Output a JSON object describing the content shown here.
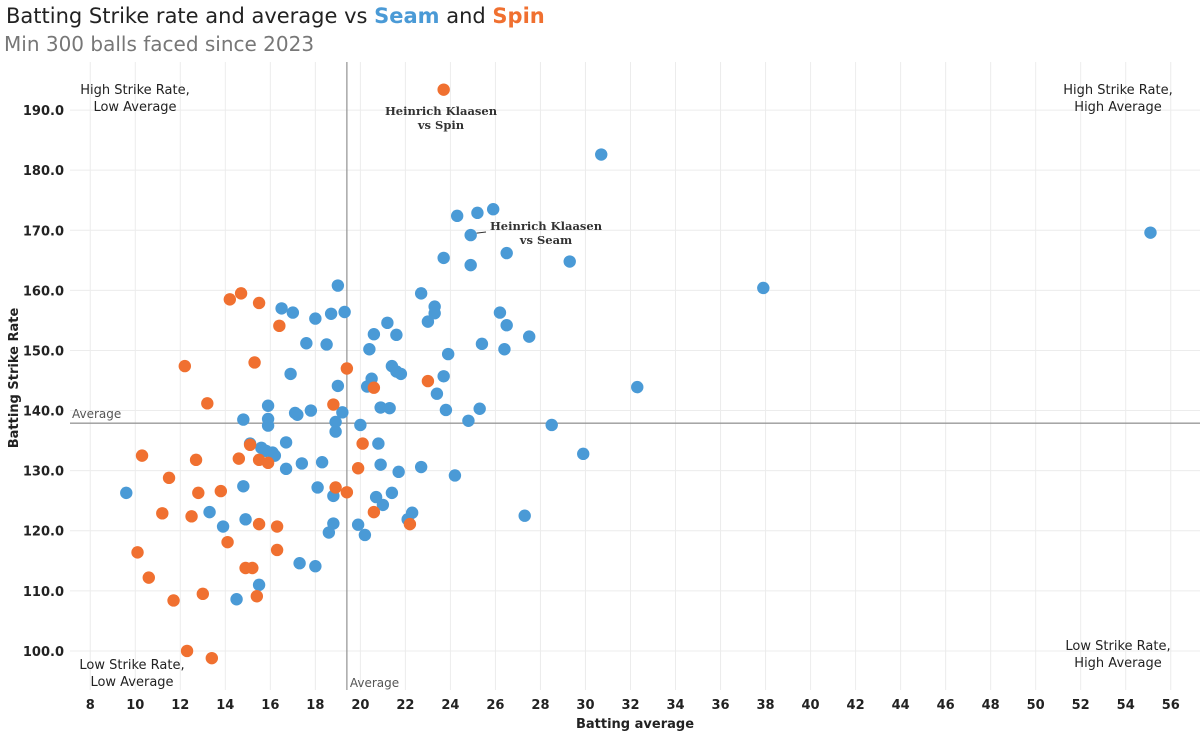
{
  "title": {
    "prefix": "Batting Strike rate and average vs ",
    "seam": "Seam",
    "middle": " and ",
    "spin": "Spin"
  },
  "subtitle": "Min 300 balls faced since 2023",
  "colors": {
    "seam": "#4a9ad6",
    "spin": "#f07030",
    "refline": "#999999",
    "grid": "#ececec"
  },
  "chart_data": {
    "type": "scatter",
    "xlabel": "Batting average",
    "ylabel": "Batting Strike Rate",
    "xlim": [
      7.1,
      57.3
    ],
    "ylim": [
      93.5,
      198
    ],
    "x_ticks": [
      8,
      10,
      12,
      14,
      16,
      18,
      20,
      22,
      24,
      26,
      28,
      30,
      32,
      34,
      36,
      38,
      40,
      42,
      44,
      46,
      48,
      50,
      52,
      54,
      56
    ],
    "y_ticks": [
      100,
      110,
      120,
      130,
      140,
      150,
      160,
      170,
      180,
      190
    ],
    "y_tick_labels": [
      "100.0",
      "110.0",
      "120.0",
      "130.0",
      "140.0",
      "150.0",
      "160.0",
      "170.0",
      "180.0",
      "190.0"
    ],
    "grid": true,
    "reference_lines": {
      "x": 19.4,
      "y": 137.9,
      "x_label": "Average",
      "y_label": "Average"
    },
    "quadrant_labels": {
      "top_left": [
        "High Strike Rate,",
        "Low Average"
      ],
      "top_right": [
        "High Strike Rate,",
        "High Average"
      ],
      "bottom_left": [
        "Low Strike Rate,",
        "Low Average"
      ],
      "bottom_right": [
        "Low Strike Rate,",
        "High Average"
      ]
    },
    "annotations": [
      {
        "lines": [
          "Heinrich Klaasen",
          "vs Spin"
        ],
        "point": [
          23.7,
          193.4
        ],
        "series": "Spin"
      },
      {
        "lines": [
          "Heinrich Klaasen",
          "vs Seam"
        ],
        "point": [
          24.9,
          169.2
        ],
        "series": "Seam"
      }
    ],
    "series": [
      {
        "name": "Seam",
        "color": "#4a9ad6",
        "points": [
          [
            9.6,
            126.3
          ],
          [
            13.3,
            123.1
          ],
          [
            13.9,
            120.7
          ],
          [
            14.5,
            108.6
          ],
          [
            14.8,
            127.4
          ],
          [
            14.9,
            121.9
          ],
          [
            14.8,
            138.5
          ],
          [
            15.1,
            134.5
          ],
          [
            15.5,
            111.0
          ],
          [
            15.6,
            133.8
          ],
          [
            15.8,
            133.3
          ],
          [
            15.9,
            140.8
          ],
          [
            15.9,
            138.6
          ],
          [
            15.9,
            137.5
          ],
          [
            16.1,
            133.0
          ],
          [
            16.2,
            132.5
          ],
          [
            16.5,
            157.0
          ],
          [
            16.7,
            134.7
          ],
          [
            16.7,
            130.3
          ],
          [
            16.9,
            146.1
          ],
          [
            17.0,
            156.3
          ],
          [
            17.1,
            139.6
          ],
          [
            17.2,
            139.3
          ],
          [
            17.3,
            114.6
          ],
          [
            17.4,
            131.2
          ],
          [
            17.6,
            151.2
          ],
          [
            17.8,
            140.0
          ],
          [
            18.0,
            114.1
          ],
          [
            18.0,
            155.3
          ],
          [
            18.1,
            127.2
          ],
          [
            18.3,
            131.4
          ],
          [
            18.5,
            151.0
          ],
          [
            18.6,
            119.7
          ],
          [
            18.7,
            156.1
          ],
          [
            18.8,
            125.8
          ],
          [
            18.8,
            121.2
          ],
          [
            18.9,
            136.5
          ],
          [
            18.9,
            138.1
          ],
          [
            19.0,
            160.8
          ],
          [
            19.0,
            144.1
          ],
          [
            19.2,
            139.7
          ],
          [
            19.3,
            156.4
          ],
          [
            19.9,
            121.0
          ],
          [
            20.0,
            137.6
          ],
          [
            20.2,
            119.3
          ],
          [
            20.3,
            144.0
          ],
          [
            20.4,
            150.2
          ],
          [
            20.5,
            145.3
          ],
          [
            20.6,
            152.7
          ],
          [
            20.7,
            125.6
          ],
          [
            20.8,
            134.5
          ],
          [
            20.9,
            140.5
          ],
          [
            20.9,
            131.0
          ],
          [
            21.0,
            124.3
          ],
          [
            21.2,
            154.6
          ],
          [
            21.3,
            140.4
          ],
          [
            21.4,
            126.3
          ],
          [
            21.4,
            147.4
          ],
          [
            21.6,
            146.5
          ],
          [
            21.6,
            152.6
          ],
          [
            21.7,
            129.8
          ],
          [
            21.8,
            146.1
          ],
          [
            22.1,
            121.9
          ],
          [
            22.3,
            123.0
          ],
          [
            22.7,
            130.6
          ],
          [
            22.7,
            159.5
          ],
          [
            23.0,
            154.8
          ],
          [
            23.3,
            157.3
          ],
          [
            23.3,
            156.2
          ],
          [
            23.4,
            142.8
          ],
          [
            23.7,
            145.7
          ],
          [
            23.7,
            165.4
          ],
          [
            23.8,
            140.1
          ],
          [
            23.9,
            149.4
          ],
          [
            24.2,
            129.2
          ],
          [
            24.3,
            172.4
          ],
          [
            24.8,
            138.3
          ],
          [
            24.9,
            169.2
          ],
          [
            24.9,
            164.2
          ],
          [
            25.2,
            172.9
          ],
          [
            25.3,
            140.3
          ],
          [
            25.4,
            151.1
          ],
          [
            25.9,
            173.5
          ],
          [
            26.2,
            156.3
          ],
          [
            26.4,
            150.2
          ],
          [
            26.5,
            166.2
          ],
          [
            26.5,
            154.2
          ],
          [
            27.3,
            122.5
          ],
          [
            27.5,
            152.3
          ],
          [
            28.5,
            137.6
          ],
          [
            29.3,
            164.8
          ],
          [
            29.9,
            132.8
          ],
          [
            30.7,
            182.6
          ],
          [
            32.3,
            143.9
          ],
          [
            37.9,
            160.4
          ],
          [
            55.1,
            169.6
          ]
        ]
      },
      {
        "name": "Spin",
        "color": "#f07030",
        "points": [
          [
            10.1,
            116.4
          ],
          [
            10.3,
            132.5
          ],
          [
            10.6,
            112.2
          ],
          [
            11.2,
            122.9
          ],
          [
            11.5,
            128.8
          ],
          [
            11.7,
            108.4
          ],
          [
            12.2,
            147.4
          ],
          [
            12.3,
            100.0
          ],
          [
            12.5,
            122.4
          ],
          [
            12.7,
            131.8
          ],
          [
            12.8,
            126.3
          ],
          [
            13.0,
            109.5
          ],
          [
            13.2,
            141.2
          ],
          [
            13.4,
            98.8
          ],
          [
            13.8,
            126.6
          ],
          [
            14.1,
            118.1
          ],
          [
            14.2,
            158.5
          ],
          [
            14.6,
            132.0
          ],
          [
            14.7,
            159.5
          ],
          [
            14.9,
            113.8
          ],
          [
            15.1,
            134.3
          ],
          [
            15.2,
            113.8
          ],
          [
            15.3,
            148.0
          ],
          [
            15.4,
            109.1
          ],
          [
            15.5,
            157.9
          ],
          [
            15.5,
            131.8
          ],
          [
            15.5,
            121.1
          ],
          [
            15.9,
            131.3
          ],
          [
            16.3,
            120.7
          ],
          [
            16.3,
            116.8
          ],
          [
            16.4,
            154.1
          ],
          [
            18.8,
            141.0
          ],
          [
            18.9,
            127.2
          ],
          [
            19.4,
            126.4
          ],
          [
            19.4,
            147.0
          ],
          [
            19.9,
            130.4
          ],
          [
            20.1,
            134.5
          ],
          [
            20.6,
            143.8
          ],
          [
            20.6,
            123.1
          ],
          [
            22.2,
            121.1
          ],
          [
            23.0,
            144.9
          ],
          [
            23.7,
            193.4
          ]
        ]
      }
    ]
  }
}
